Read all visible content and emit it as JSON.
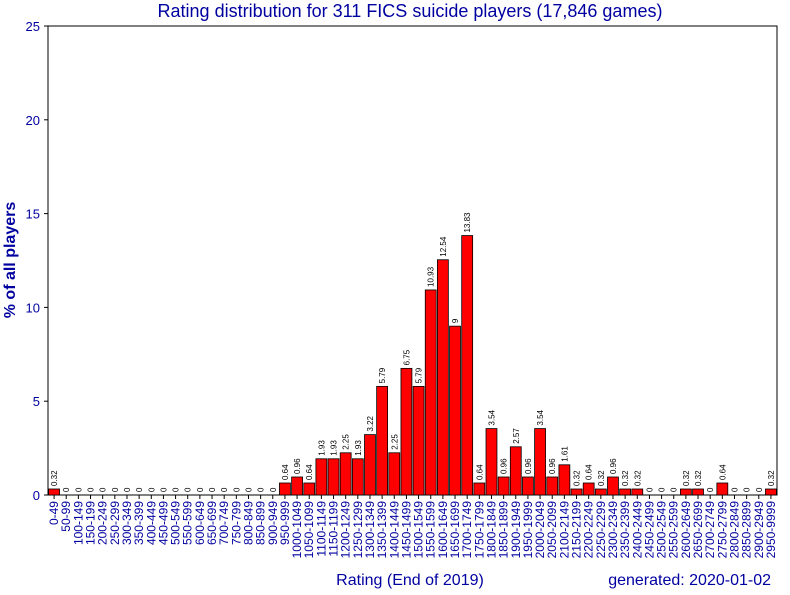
{
  "chart_data": {
    "type": "bar",
    "title": "Rating distribution for 311 FICS suicide players (17,846 games)",
    "xlabel": "Rating (End of 2019)",
    "ylabel": "% of all players",
    "footer": "generated: 2020-01-02",
    "ylim": [
      0,
      25
    ],
    "yticks": [
      0,
      5,
      10,
      15,
      20,
      25
    ],
    "grid": false,
    "categories": [
      "0-49",
      "50-99",
      "100-149",
      "150-199",
      "200-249",
      "250-299",
      "300-349",
      "350-399",
      "400-449",
      "450-499",
      "500-549",
      "550-599",
      "600-649",
      "650-699",
      "700-749",
      "750-799",
      "800-849",
      "850-899",
      "900-949",
      "950-999",
      "1000-1049",
      "1050-1099",
      "1100-1149",
      "1150-1199",
      "1200-1249",
      "1250-1299",
      "1300-1349",
      "1350-1399",
      "1400-1449",
      "1450-1499",
      "1500-1549",
      "1550-1599",
      "1600-1649",
      "1650-1699",
      "1700-1749",
      "1750-1799",
      "1800-1849",
      "1850-1899",
      "1900-1949",
      "1950-1999",
      "2000-2049",
      "2050-2099",
      "2100-2149",
      "2150-2199",
      "2200-2249",
      "2250-2299",
      "2300-2349",
      "2350-2399",
      "2400-2449",
      "2450-2499",
      "2500-2549",
      "2550-2599",
      "2600-2649",
      "2650-2699",
      "2700-2749",
      "2750-2799",
      "2800-2849",
      "2850-2899",
      "2900-2949",
      "2950-9999"
    ],
    "values": [
      0.32,
      0,
      0,
      0,
      0,
      0,
      0,
      0,
      0,
      0,
      0,
      0,
      0,
      0,
      0,
      0,
      0,
      0,
      0,
      0.64,
      0.96,
      0.64,
      1.93,
      1.93,
      2.25,
      1.93,
      3.22,
      5.79,
      2.25,
      6.75,
      5.79,
      10.93,
      12.54,
      9,
      13.83,
      0.64,
      3.54,
      0.96,
      2.57,
      0.96,
      3.54,
      0.96,
      1.61,
      0.32,
      0.64,
      0.32,
      0.96,
      0.32,
      0.32,
      0,
      0,
      0,
      0.32,
      0.32,
      0,
      0.64,
      0,
      0,
      0,
      0.32
    ],
    "bar_color": "#ff0000",
    "text_color": "#0000a0"
  }
}
